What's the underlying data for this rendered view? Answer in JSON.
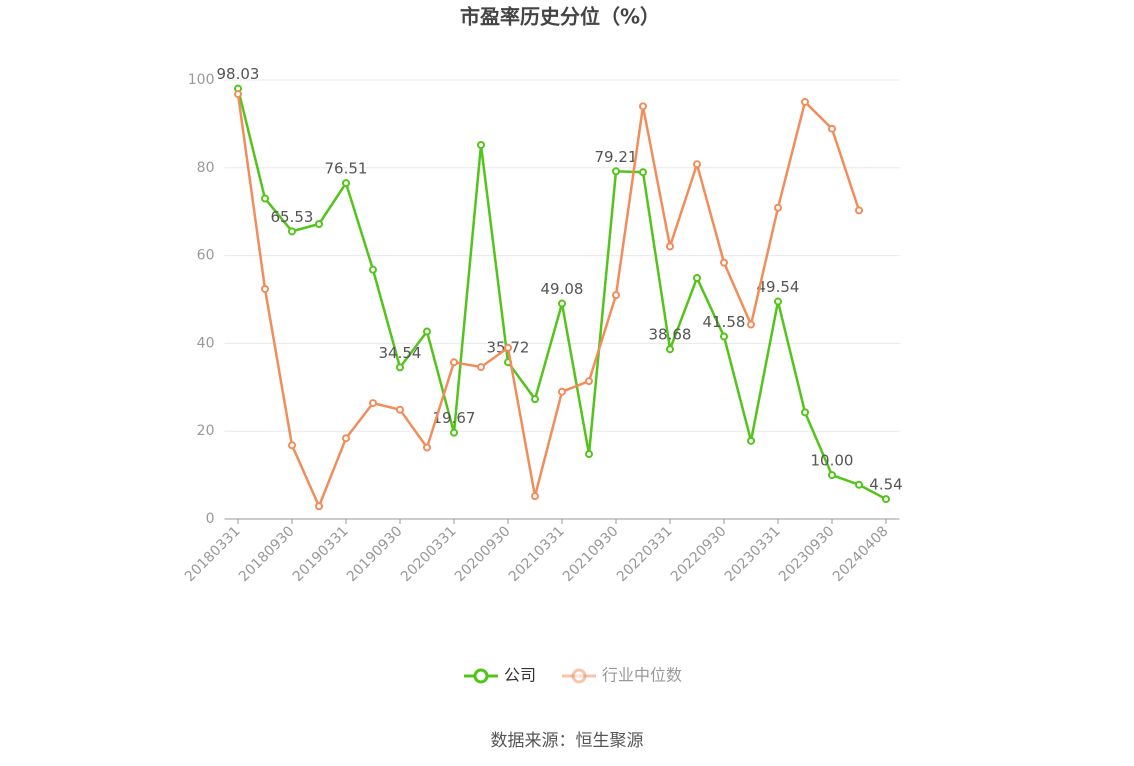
{
  "chart_data": {
    "type": "line",
    "title": "市盈率历史分位（%）",
    "source": "数据来源：恒生聚源",
    "categories": [
      "20180331",
      null,
      "20180930",
      null,
      "20190331",
      null,
      "20190930",
      null,
      "20200331",
      null,
      "20200930",
      null,
      "20210331",
      null,
      "20210930",
      null,
      "20220331",
      null,
      "20220930",
      null,
      "20230331",
      null,
      "20230930",
      null,
      "20240408"
    ],
    "ylim": [
      0,
      100
    ],
    "yticks": [
      0,
      20,
      40,
      60,
      80,
      100
    ],
    "grid": true,
    "series": [
      {
        "name": "公司",
        "color": "#52c41a",
        "values": [
          98.03,
          73,
          65.53,
          67.2,
          76.51,
          56.8,
          34.54,
          42.7,
          19.67,
          85.2,
          35.72,
          27.3,
          49.08,
          14.8,
          79.21,
          79.0,
          38.68,
          54.9,
          41.58,
          17.8,
          49.54,
          24.3,
          10.0,
          7.8,
          4.54
        ],
        "value_labels": [
          "98.03",
          null,
          "65.53",
          null,
          "76.51",
          null,
          "34.54",
          null,
          "19.67",
          null,
          "35.72",
          null,
          "49.08",
          null,
          "79.21",
          null,
          "38.68",
          null,
          "41.58",
          null,
          "49.54",
          null,
          "10.00",
          null,
          "4.54"
        ]
      },
      {
        "name": "行业中位数",
        "color": "#f28c5a",
        "values": [
          96.8,
          52.4,
          16.8,
          2.9,
          18.4,
          26.4,
          24.9,
          16.3,
          35.7,
          34.6,
          39.0,
          5.2,
          29.0,
          31.4,
          51.0,
          94.0,
          62.1,
          80.8,
          58.4,
          44.3,
          70.9,
          95.0,
          88.9,
          70.3,
          null
        ]
      }
    ]
  }
}
